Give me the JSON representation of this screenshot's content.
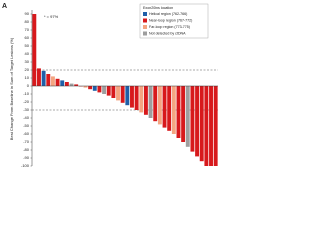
{
  "chart_data": {
    "type": "bar",
    "panel_label": "A",
    "y_label": "Best Change From Baseline in Sum of Target Lesions (%)",
    "annotation": "* = 97%",
    "legend_title": "Exon20ins location",
    "ylim": [
      -100,
      95
    ],
    "yticks": [
      90,
      80,
      70,
      60,
      50,
      40,
      30,
      20,
      10,
      0,
      -10,
      -20,
      -30,
      -40,
      -50,
      -60,
      -70,
      -80,
      -90,
      -100
    ],
    "reference_lines": [
      20,
      -30
    ],
    "series": [
      {
        "name": "Helical region (762-766)",
        "color": "#1f5fa8",
        "values": [
          null,
          null,
          19,
          null,
          null,
          null,
          7,
          null,
          null,
          null,
          null,
          null,
          null,
          -6,
          null,
          null,
          null,
          null,
          null,
          null,
          -24,
          null,
          null,
          null,
          null,
          null,
          null,
          null,
          null,
          null,
          null,
          null,
          null,
          null,
          null,
          null,
          null,
          null,
          null,
          null
        ]
      },
      {
        "name": "Near-loop region (767-772)",
        "color": "#d7191c",
        "values": [
          90,
          22,
          null,
          15,
          null,
          9,
          null,
          5,
          null,
          2,
          0,
          null,
          -4,
          null,
          -8,
          null,
          -12,
          -15,
          null,
          -21,
          null,
          -27,
          -30,
          null,
          -36,
          null,
          -44,
          null,
          -52,
          -56,
          null,
          -65,
          -70,
          null,
          -82,
          -88,
          -94,
          -100,
          -100,
          -100
        ]
      },
      {
        "name": "Far-loop region (773-775)",
        "color": "#f4a582",
        "values": [
          null,
          null,
          null,
          null,
          12,
          null,
          null,
          null,
          null,
          null,
          null,
          -2,
          null,
          null,
          null,
          null,
          null,
          null,
          -18,
          null,
          null,
          null,
          null,
          -33,
          null,
          null,
          null,
          -48,
          null,
          null,
          -60,
          null,
          null,
          null,
          null,
          null,
          null,
          null,
          null,
          null
        ]
      },
      {
        "name": "Not detected by ctDNA",
        "color": "#9e9e9e",
        "values": [
          null,
          null,
          null,
          null,
          null,
          null,
          null,
          null,
          3,
          null,
          null,
          null,
          null,
          null,
          null,
          -10,
          null,
          null,
          null,
          null,
          null,
          null,
          null,
          null,
          null,
          -40,
          null,
          null,
          null,
          null,
          null,
          null,
          null,
          -76,
          null,
          null,
          null,
          null,
          null,
          null
        ]
      }
    ]
  }
}
